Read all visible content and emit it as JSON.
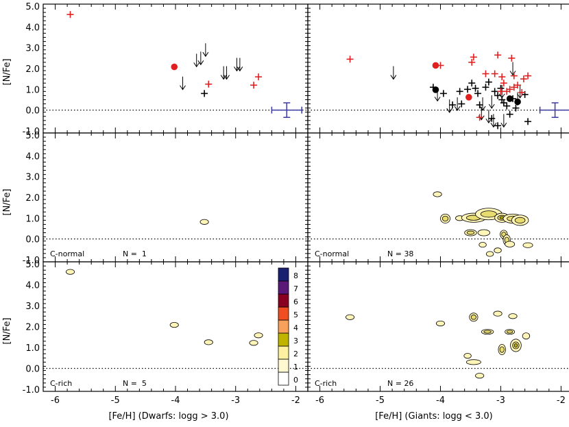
{
  "chart_data": {
    "type": "scatter",
    "xlim": [
      -6.2,
      -1.8
    ],
    "ylim": [
      -1.1,
      5.1
    ],
    "x_ticks": [
      "-6",
      "-5",
      "-4",
      "-3",
      "-2"
    ],
    "y_ticks": [
      "-1.0",
      "0.0",
      "1.0",
      "2.0",
      "3.0",
      "4.0",
      "5.0"
    ],
    "ylabel": "[N/Fe]",
    "xlabel_left": "[Fe/H] (Dwarfs: logg > 3.0)",
    "xlabel_right": "[Fe/H] (Giants: logg < 3.0)",
    "reference_line_y": 0.0,
    "colors": {
      "c_rich": "#e02020",
      "c_normal": "#000000",
      "errorbar": "#3a3aa0",
      "contour": "#fff5b8",
      "contour_mid": "#e8dc70",
      "contour_peak": "#b8b000"
    },
    "colorbar": {
      "levels": [
        "0",
        "1",
        "2",
        "3",
        "4",
        "5",
        "6",
        "7",
        "8"
      ],
      "colors": [
        "#ffffff",
        "#fff8d0",
        "#fff1a0",
        "#c0b400",
        "#f9a05a",
        "#f04d20",
        "#8a0020",
        "#5a1878",
        "#1a2070"
      ]
    },
    "panels": [
      {
        "id": "dwarfs-all",
        "label": "",
        "n_label": "",
        "c_rich_plus": [
          [
            -5.75,
            4.6
          ],
          [
            -3.45,
            1.25
          ],
          [
            -2.7,
            1.2
          ],
          [
            -2.62,
            1.6
          ]
        ],
        "c_rich_dots": [
          [
            -4.02,
            2.08
          ]
        ],
        "c_normal_plus": [
          [
            -3.52,
            0.8
          ]
        ],
        "c_normal_dots": [],
        "upper_limits": [
          [
            -3.88,
            1.3
          ],
          [
            -3.65,
            2.4
          ],
          [
            -3.58,
            2.5
          ],
          [
            -3.5,
            2.9
          ],
          [
            -3.2,
            1.8
          ],
          [
            -3.15,
            1.8
          ],
          [
            -2.98,
            2.2
          ],
          [
            -2.93,
            2.2
          ]
        ],
        "errorbar": {
          "x": -2.15,
          "y": 0.0,
          "xerr": 0.25,
          "yerr": 0.35
        }
      },
      {
        "id": "giants-all",
        "label": "",
        "n_label": "",
        "c_rich_plus": [
          [
            -5.5,
            2.45
          ],
          [
            -4.0,
            2.15
          ],
          [
            -3.45,
            2.55
          ],
          [
            -3.48,
            2.3
          ],
          [
            -3.05,
            2.65
          ],
          [
            -2.82,
            2.5
          ],
          [
            -3.1,
            1.75
          ],
          [
            -3.25,
            1.75
          ],
          [
            -2.98,
            1.6
          ],
          [
            -2.95,
            1.3
          ],
          [
            -2.9,
            0.9
          ],
          [
            -2.85,
            1.0
          ],
          [
            -2.78,
            1.65
          ],
          [
            -2.62,
            1.5
          ],
          [
            -2.55,
            1.65
          ],
          [
            -2.72,
            1.2
          ],
          [
            -2.78,
            1.1
          ],
          [
            -2.65,
            0.85
          ],
          [
            -3.0,
            0.9
          ],
          [
            -3.35,
            -0.35
          ]
        ],
        "c_rich_dots": [
          [
            -4.08,
            2.15
          ],
          [
            -3.53,
            0.62
          ]
        ],
        "c_normal_plus": [
          [
            -4.12,
            1.1
          ],
          [
            -3.95,
            0.8
          ],
          [
            -3.8,
            0.25
          ],
          [
            -3.68,
            0.9
          ],
          [
            -3.65,
            0.3
          ],
          [
            -3.55,
            1.0
          ],
          [
            -3.48,
            1.3
          ],
          [
            -3.42,
            1.05
          ],
          [
            -3.38,
            0.8
          ],
          [
            -3.35,
            0.25
          ],
          [
            -3.25,
            1.1
          ],
          [
            -3.2,
            1.35
          ],
          [
            -3.1,
            0.9
          ],
          [
            -3.05,
            0.7
          ],
          [
            -3.0,
            1.05
          ],
          [
            -2.98,
            0.5
          ],
          [
            -2.95,
            0.35
          ],
          [
            -2.9,
            0.2
          ],
          [
            -2.85,
            -0.2
          ],
          [
            -2.8,
            0.55
          ],
          [
            -2.6,
            0.75
          ],
          [
            -2.75,
            0.1
          ],
          [
            -3.15,
            -0.4
          ],
          [
            -3.05,
            -0.75
          ],
          [
            -2.55,
            -0.55
          ]
        ],
        "c_normal_dots": [
          [
            -4.08,
            0.98
          ],
          [
            -2.85,
            0.55
          ],
          [
            -2.72,
            0.4
          ]
        ],
        "upper_limits": [
          [
            -4.78,
            1.8
          ],
          [
            -4.05,
            0.75
          ],
          [
            -3.85,
            0.2
          ],
          [
            -3.72,
            0.3
          ],
          [
            -3.3,
            0.3
          ],
          [
            -3.15,
            0.4
          ],
          [
            -3.2,
            -0.3
          ],
          [
            -3.12,
            -0.5
          ],
          [
            -2.95,
            -0.5
          ],
          [
            -3.32,
            -0.15
          ],
          [
            -2.98,
            0.9
          ],
          [
            -2.8,
            2.0
          ],
          [
            -2.72,
            0.55
          ],
          [
            -2.68,
            0.9
          ]
        ],
        "errorbar": {
          "x": -2.1,
          "y": 0.0,
          "xerr": 0.25,
          "yerr": 0.35
        }
      },
      {
        "id": "dwarfs-c-normal",
        "label": "C-normal",
        "n_label": "N =  1",
        "blobs": [
          [
            -3.52,
            0.82,
            0.07,
            0.12,
            1
          ]
        ]
      },
      {
        "id": "giants-c-normal",
        "label": "C-normal",
        "n_label": "N = 38",
        "blobs": [
          [
            -4.05,
            2.15,
            0.07,
            0.12,
            1
          ],
          [
            -3.92,
            0.98,
            0.08,
            0.22,
            2
          ],
          [
            -3.68,
            1.0,
            0.07,
            0.12,
            1
          ],
          [
            -3.45,
            1.02,
            0.2,
            0.22,
            2
          ],
          [
            -3.2,
            1.2,
            0.22,
            0.28,
            2
          ],
          [
            -2.98,
            1.02,
            0.12,
            0.22,
            3
          ],
          [
            -2.8,
            0.98,
            0.16,
            0.22,
            2
          ],
          [
            -2.68,
            0.9,
            0.14,
            0.25,
            2
          ],
          [
            -3.5,
            0.3,
            0.1,
            0.15,
            2
          ],
          [
            -3.28,
            0.3,
            0.1,
            0.15,
            1
          ],
          [
            -2.95,
            0.22,
            0.06,
            0.2,
            2
          ],
          [
            -2.9,
            -0.05,
            0.06,
            0.25,
            2
          ],
          [
            -2.85,
            -0.25,
            0.08,
            0.14,
            1
          ],
          [
            -2.55,
            -0.3,
            0.08,
            0.12,
            1
          ],
          [
            -3.3,
            -0.28,
            0.06,
            0.12,
            1
          ],
          [
            -3.05,
            -0.55,
            0.06,
            0.12,
            1
          ],
          [
            -3.18,
            -0.72,
            0.06,
            0.12,
            1
          ]
        ]
      },
      {
        "id": "dwarfs-c-rich",
        "label": "C-rich",
        "n_label": "N =  5",
        "blobs": [
          [
            -5.75,
            4.62,
            0.07,
            0.12,
            1
          ],
          [
            -4.02,
            2.08,
            0.07,
            0.12,
            1
          ],
          [
            -3.45,
            1.25,
            0.07,
            0.12,
            1
          ],
          [
            -2.7,
            1.22,
            0.07,
            0.12,
            1
          ],
          [
            -2.62,
            1.58,
            0.07,
            0.12,
            1
          ]
        ]
      },
      {
        "id": "giants-c-rich",
        "label": "C-rich",
        "n_label": "N = 26",
        "blobs": [
          [
            -5.5,
            2.45,
            0.07,
            0.12,
            1
          ],
          [
            -4.0,
            2.15,
            0.07,
            0.12,
            1
          ],
          [
            -3.45,
            2.45,
            0.07,
            0.2,
            2
          ],
          [
            -3.05,
            2.62,
            0.07,
            0.12,
            1
          ],
          [
            -2.8,
            2.5,
            0.07,
            0.12,
            1
          ],
          [
            -3.22,
            1.75,
            0.1,
            0.12,
            2
          ],
          [
            -2.85,
            1.75,
            0.08,
            0.12,
            2
          ],
          [
            -2.75,
            1.1,
            0.09,
            0.3,
            3
          ],
          [
            -2.58,
            1.55,
            0.06,
            0.15,
            1
          ],
          [
            -2.98,
            0.9,
            0.06,
            0.25,
            2
          ],
          [
            -3.55,
            0.6,
            0.06,
            0.12,
            1
          ],
          [
            -3.45,
            0.3,
            0.12,
            0.12,
            1
          ],
          [
            -3.35,
            -0.35,
            0.07,
            0.12,
            1
          ]
        ]
      }
    ]
  }
}
